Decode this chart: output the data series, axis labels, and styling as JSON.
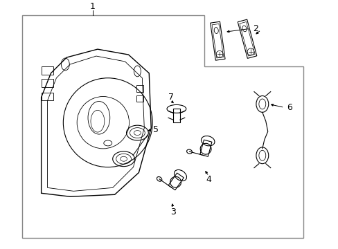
{
  "background_color": "#ffffff",
  "line_color": "#000000",
  "gray_color": "#888888",
  "fig_width": 4.89,
  "fig_height": 3.6,
  "dpi": 100
}
